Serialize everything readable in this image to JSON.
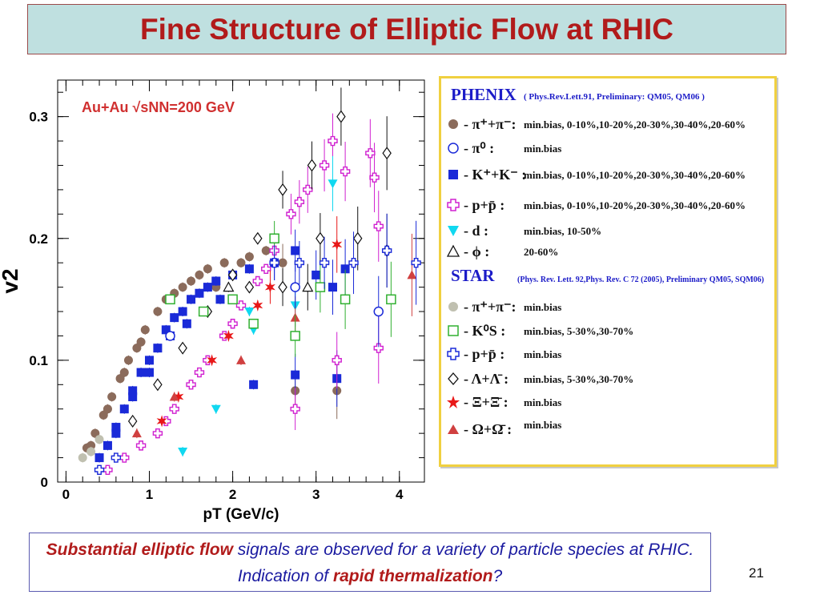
{
  "slide": {
    "title": "Fine Structure of Elliptic Flow at RHIC",
    "page_number": "21",
    "note": {
      "part1": "Substantial elliptic flow",
      "part2": " signals are observed  for a variety of particle species at RHIC. Indication of ",
      "part3": "rapid thermalization",
      "part4": "?"
    }
  },
  "legend": {
    "phenix_header": "PHENIX",
    "phenix_cite": "( Phys.Rev.Lett.91, Preliminary: QM05, QM06 )",
    "star_header": "STAR",
    "star_cite": "(Phys. Rev. Lett. 92,Phys. Rev. C 72 (2005), Preliminary QM05, SQM06)",
    "phenix_entries": [
      {
        "label": "- π⁺+π⁻:",
        "centrality": "min.bias, 0-10%,10-20%,20-30%,30-40%,20-60%"
      },
      {
        "label": "- π⁰ :",
        "centrality": "min.bias"
      },
      {
        "label": "- K⁺+K⁻ :",
        "centrality": "min.bias, 0-10%,10-20%,20-30%,30-40%,20-60%"
      },
      {
        "label": "- p+p̄ :",
        "centrality": "min.bias, 0-10%,10-20%,20-30%,30-40%,20-60%"
      },
      {
        "label": "- d :",
        "centrality": "min.bias, 10-50%"
      },
      {
        "label": "- ϕ :",
        "centrality": "20-60%"
      }
    ],
    "star_entries": [
      {
        "label": "- π⁺+π⁻:",
        "centrality": "min.bias"
      },
      {
        "label": "- K⁰S :",
        "centrality": "min.bias, 5-30%,30-70%"
      },
      {
        "label": "- p+p̄ :",
        "centrality": "min.bias"
      },
      {
        "label": "- Λ+Λ̄ :",
        "centrality": "min.bias, 5-30%,30-70%"
      },
      {
        "label": "- Ξ+Ξ̄ :",
        "centrality": "min.bias"
      },
      {
        "label": "- Ω+Ω̄ :",
        "centrality": "min.bias"
      }
    ]
  },
  "chart_data": {
    "type": "scatter",
    "annotation": "Au+Au √sNN=200 GeV",
    "xlabel": "pT (GeV/c)",
    "ylabel": "v2",
    "xlim": [
      -0.1,
      4.3
    ],
    "ylim": [
      0,
      0.33
    ],
    "x_ticks": [
      "0",
      "1",
      "2",
      "3",
      "4"
    ],
    "y_ticks": [
      "0",
      "0.1",
      "0.2",
      "0.3"
    ],
    "series": [
      {
        "marker": "circle-filled",
        "color": "#8b6b5b",
        "points": [
          [
            0.25,
            0.028
          ],
          [
            0.35,
            0.04
          ],
          [
            0.45,
            0.055
          ],
          [
            0.55,
            0.07
          ],
          [
            0.65,
            0.085
          ],
          [
            0.75,
            0.1
          ],
          [
            0.85,
            0.11
          ],
          [
            0.95,
            0.125
          ],
          [
            1.1,
            0.14
          ],
          [
            1.3,
            0.155
          ],
          [
            1.5,
            0.165
          ],
          [
            1.7,
            0.175
          ],
          [
            1.9,
            0.18
          ],
          [
            2.2,
            0.185
          ],
          [
            2.6,
            0.18
          ],
          [
            0.3,
            0.03
          ],
          [
            0.5,
            0.06
          ],
          [
            0.7,
            0.09
          ],
          [
            0.9,
            0.115
          ],
          [
            1.2,
            0.15
          ],
          [
            1.4,
            0.16
          ],
          [
            1.6,
            0.17
          ],
          [
            1.8,
            0.16
          ],
          [
            2.1,
            0.18
          ],
          [
            2.4,
            0.19
          ],
          [
            2.75,
            0.075
          ],
          [
            3.25,
            0.075
          ]
        ]
      },
      {
        "marker": "square-filled",
        "color": "#1a2ad8",
        "points": [
          [
            0.4,
            0.02
          ],
          [
            0.5,
            0.03
          ],
          [
            0.6,
            0.045
          ],
          [
            0.7,
            0.06
          ],
          [
            0.8,
            0.075
          ],
          [
            0.9,
            0.09
          ],
          [
            1.0,
            0.1
          ],
          [
            1.1,
            0.11
          ],
          [
            1.2,
            0.125
          ],
          [
            1.3,
            0.135
          ],
          [
            1.4,
            0.14
          ],
          [
            1.5,
            0.15
          ],
          [
            1.6,
            0.155
          ],
          [
            1.7,
            0.16
          ],
          [
            1.8,
            0.165
          ],
          [
            2.0,
            0.17
          ],
          [
            2.2,
            0.175
          ],
          [
            2.5,
            0.18
          ],
          [
            2.75,
            0.19
          ],
          [
            3.0,
            0.17
          ],
          [
            3.2,
            0.16
          ],
          [
            0.6,
            0.04
          ],
          [
            0.8,
            0.07
          ],
          [
            1.0,
            0.09
          ],
          [
            1.25,
            0.12
          ],
          [
            1.45,
            0.13
          ],
          [
            1.65,
            0.14
          ],
          [
            1.85,
            0.15
          ],
          [
            2.25,
            0.08
          ],
          [
            2.75,
            0.088
          ],
          [
            3.25,
            0.085
          ],
          [
            3.35,
            0.175
          ]
        ]
      },
      {
        "marker": "plus-open",
        "color": "#d020d0",
        "points": [
          [
            0.5,
            0.01
          ],
          [
            0.7,
            0.02
          ],
          [
            0.9,
            0.03
          ],
          [
            1.1,
            0.04
          ],
          [
            1.3,
            0.06
          ],
          [
            1.5,
            0.08
          ],
          [
            1.7,
            0.1
          ],
          [
            1.9,
            0.12
          ],
          [
            2.1,
            0.145
          ],
          [
            2.3,
            0.165
          ],
          [
            2.5,
            0.19
          ],
          [
            2.7,
            0.22
          ],
          [
            2.9,
            0.24
          ],
          [
            3.1,
            0.26
          ],
          [
            3.35,
            0.255
          ],
          [
            3.7,
            0.25
          ],
          [
            1.2,
            0.05
          ],
          [
            1.6,
            0.09
          ],
          [
            2.0,
            0.13
          ],
          [
            2.4,
            0.175
          ],
          [
            2.8,
            0.23
          ],
          [
            3.2,
            0.28
          ],
          [
            3.65,
            0.27
          ],
          [
            3.75,
            0.21
          ],
          [
            2.75,
            0.06
          ],
          [
            3.25,
            0.1
          ],
          [
            3.75,
            0.11
          ]
        ]
      },
      {
        "marker": "diamond-open",
        "color": "#111111",
        "points": [
          [
            0.8,
            0.05
          ],
          [
            1.1,
            0.08
          ],
          [
            1.4,
            0.11
          ],
          [
            1.7,
            0.14
          ],
          [
            2.0,
            0.17
          ],
          [
            2.3,
            0.2
          ],
          [
            2.6,
            0.24
          ],
          [
            2.95,
            0.26
          ],
          [
            3.3,
            0.3
          ],
          [
            3.85,
            0.27
          ],
          [
            3.05,
            0.2
          ],
          [
            3.5,
            0.2
          ],
          [
            2.6,
            0.16
          ],
          [
            2.2,
            0.16
          ],
          [
            3.85,
            0.19
          ]
        ]
      },
      {
        "marker": "triangle-down",
        "color": "#10d8f0",
        "points": [
          [
            1.4,
            0.025
          ],
          [
            1.8,
            0.06
          ],
          [
            2.2,
            0.14
          ],
          [
            2.75,
            0.145
          ],
          [
            3.2,
            0.245
          ],
          [
            2.25,
            0.125
          ]
        ]
      },
      {
        "marker": "star",
        "color": "#e81818",
        "points": [
          [
            1.15,
            0.05
          ],
          [
            1.35,
            0.07
          ],
          [
            1.75,
            0.1
          ],
          [
            1.95,
            0.12
          ],
          [
            2.3,
            0.145
          ],
          [
            2.45,
            0.16
          ],
          [
            3.25,
            0.195
          ]
        ]
      },
      {
        "marker": "triangle-up",
        "color": "#d04040",
        "points": [
          [
            0.85,
            0.04
          ],
          [
            1.3,
            0.07
          ],
          [
            2.1,
            0.1
          ],
          [
            2.75,
            0.135
          ],
          [
            4.15,
            0.17
          ]
        ]
      },
      {
        "marker": "square-open",
        "color": "#30b030",
        "points": [
          [
            1.25,
            0.15
          ],
          [
            1.65,
            0.14
          ],
          [
            2.0,
            0.15
          ],
          [
            2.5,
            0.2
          ],
          [
            2.75,
            0.12
          ],
          [
            3.05,
            0.16
          ],
          [
            3.35,
            0.15
          ],
          [
            3.9,
            0.15
          ],
          [
            2.25,
            0.13
          ]
        ]
      },
      {
        "marker": "circle-open",
        "color": "#1a2ad8",
        "points": [
          [
            1.25,
            0.12
          ],
          [
            2.75,
            0.16
          ],
          [
            3.75,
            0.14
          ]
        ]
      },
      {
        "marker": "triangle-open",
        "color": "#111111",
        "points": [
          [
            1.95,
            0.16
          ],
          [
            2.9,
            0.16
          ]
        ]
      },
      {
        "marker": "plus-open",
        "color": "#1a2ad8",
        "points": [
          [
            0.4,
            0.01
          ],
          [
            0.6,
            0.02
          ],
          [
            2.5,
            0.18
          ],
          [
            2.8,
            0.18
          ],
          [
            3.1,
            0.18
          ],
          [
            3.45,
            0.18
          ],
          [
            3.85,
            0.19
          ],
          [
            4.2,
            0.18
          ]
        ]
      },
      {
        "marker": "circle-filled",
        "color": "#c0c0b0",
        "points": [
          [
            0.2,
            0.02
          ],
          [
            0.3,
            0.025
          ],
          [
            0.4,
            0.035
          ]
        ]
      }
    ]
  }
}
